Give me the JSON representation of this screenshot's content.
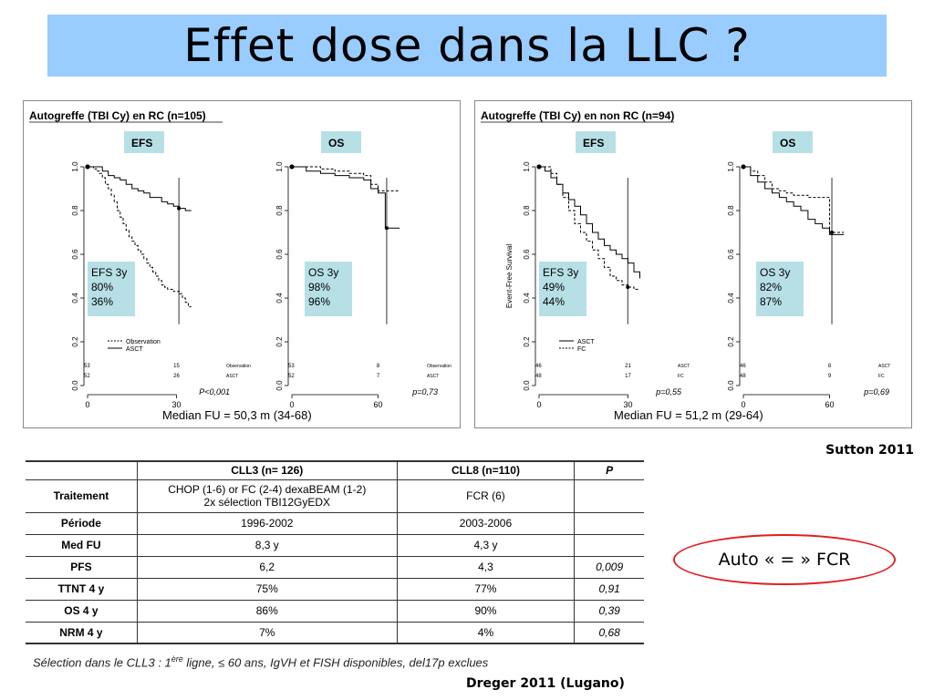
{
  "title": "Effet dose dans la LLC ?",
  "citation_top": "Sutton 2011",
  "callout": "Auto « = »  FCR",
  "footnote": {
    "before": "Sélection dans le CLL3 : 1",
    "sup": "ère",
    "after": " ligne, ≤ 60 ans, IgVH et FISH disponibles, del17p exclues"
  },
  "citation_bottom": "Dreger 2011 (Lugano)",
  "table": {
    "headers": [
      "",
      "CLL3 (n= 126)",
      "CLL8  (n=110)",
      "P"
    ],
    "rows": [
      {
        "label": "Traitement",
        "c1": "CHOP (1-6) or FC (2-4) dexaBEAM (1-2)",
        "c1b": "2x sélection  TBI12GyEDX",
        "c2": "FCR (6)",
        "p": ""
      },
      {
        "label": "Période",
        "c1": "1996-2002",
        "c1b": "",
        "c2": "2003-2006",
        "p": ""
      },
      {
        "label": "Med FU",
        "c1": "8,3 y",
        "c1b": "",
        "c2": "4,3 y",
        "p": ""
      },
      {
        "label": "PFS",
        "c1": "6,2",
        "c1b": "",
        "c2": "4,3",
        "p": "0,009"
      },
      {
        "label": "TTNT 4 y",
        "c1": "75%",
        "c1b": "",
        "c2": "77%",
        "p": "0,91"
      },
      {
        "label": "OS 4 y",
        "c1": "86%",
        "c1b": "",
        "c2": "90%",
        "p": "0,39"
      },
      {
        "label": "NRM 4 y",
        "c1": "7%",
        "c1b": "",
        "c2": "4%",
        "p": "0,68"
      }
    ]
  },
  "chart_data": [
    {
      "type": "line",
      "panel_title": "Autogreffe (TBI Cy) en RC (n=105)",
      "median_fu": "Median FU = 50,3 m (34-68)",
      "plots": [
        {
          "label": "EFS",
          "xlim": [
            0,
            40
          ],
          "ylim": [
            0,
            1
          ],
          "yticks": [
            "0.0",
            "0.2",
            "0.4",
            "0.6",
            "0.8",
            "1.0"
          ],
          "xticks": [
            "0",
            "30"
          ],
          "legend": [
            "Observation",
            "ASCT"
          ],
          "stats_box": [
            "EFS 3y",
            "80%",
            "36%"
          ],
          "risk_table": {
            "headers": [
              "Observation",
              "ASCT"
            ],
            "observation": [
              "53",
              "15"
            ],
            "asct": [
              "52",
              "26"
            ]
          },
          "pvalue": "P<0,001",
          "series": [
            {
              "name": "Observation",
              "dash": true,
              "x": [
                0,
                1,
                2,
                3,
                4,
                5,
                6,
                7,
                8,
                9,
                10,
                11,
                12,
                13,
                14,
                15,
                16,
                17,
                18,
                19,
                20,
                21,
                22,
                23,
                24,
                25,
                26,
                27,
                28,
                29,
                30,
                31,
                32,
                33,
                34,
                35
              ],
              "y": [
                1.0,
                1.0,
                0.99,
                0.98,
                0.97,
                0.95,
                0.92,
                0.9,
                0.87,
                0.84,
                0.8,
                0.77,
                0.74,
                0.71,
                0.68,
                0.66,
                0.64,
                0.62,
                0.6,
                0.58,
                0.56,
                0.54,
                0.52,
                0.5,
                0.48,
                0.46,
                0.45,
                0.44,
                0.44,
                0.43,
                0.43,
                0.42,
                0.4,
                0.38,
                0.36,
                0.36
              ]
            },
            {
              "name": "ASCT",
              "dash": false,
              "x": [
                0,
                3,
                5,
                7,
                9,
                11,
                13,
                15,
                17,
                19,
                21,
                23,
                25,
                27,
                29,
                31,
                33,
                35
              ],
              "y": [
                1.0,
                1.0,
                0.98,
                0.96,
                0.95,
                0.94,
                0.92,
                0.9,
                0.89,
                0.88,
                0.86,
                0.86,
                0.84,
                0.83,
                0.82,
                0.81,
                0.8,
                0.8
              ]
            }
          ]
        },
        {
          "label": "OS",
          "xlim": [
            0,
            80
          ],
          "ylim": [
            0,
            1
          ],
          "yticks": [
            "0.0",
            "0.2",
            "0.4",
            "0.6",
            "0.8",
            "1.0"
          ],
          "xticks": [
            "0",
            "60"
          ],
          "stats_box": [
            "OS 3y",
            "98%",
            "96%"
          ],
          "risk_table": {
            "headers": [
              "Observation",
              "ASCT"
            ],
            "observation": [
              "53",
              "8"
            ],
            "asct": [
              "52",
              "7"
            ]
          },
          "pvalue": "p=0,73",
          "series": [
            {
              "name": "Observation",
              "dash": true,
              "x": [
                0,
                10,
                20,
                30,
                40,
                50,
                55,
                60,
                65,
                70,
                75
              ],
              "y": [
                1.0,
                1.0,
                0.99,
                0.98,
                0.97,
                0.96,
                0.92,
                0.89,
                0.89,
                0.89,
                0.89
              ]
            },
            {
              "name": "ASCT",
              "dash": false,
              "x": [
                0,
                10,
                20,
                30,
                40,
                50,
                55,
                60,
                65,
                70,
                75
              ],
              "y": [
                1.0,
                0.98,
                0.97,
                0.96,
                0.95,
                0.94,
                0.9,
                0.88,
                0.72,
                0.72,
                0.72
              ]
            }
          ]
        }
      ]
    },
    {
      "type": "line",
      "panel_title": "Autogreffe (TBI Cy) en non RC (n=94)",
      "median_fu": "Median FU = 51,2 m (29-64)",
      "plots": [
        {
          "label": "EFS",
          "ylabel": "Event-Free Survival",
          "xlim": [
            0,
            40
          ],
          "ylim": [
            0,
            1
          ],
          "yticks": [
            "0.0",
            "0.2",
            "0.4",
            "0.6",
            "0.8",
            "1.0"
          ],
          "xticks": [
            "0",
            "30"
          ],
          "legend": [
            "ASCT",
            "FC"
          ],
          "stats_box": [
            "EFS 3y",
            "49%",
            "44%"
          ],
          "risk_table": {
            "headers": [
              "ASCT",
              "FC"
            ],
            "asct": [
              "46",
              "21"
            ],
            "fc": [
              "48",
              "17"
            ]
          },
          "pvalue": "p=0,55",
          "series": [
            {
              "name": "ASCT",
              "dash": false,
              "x": [
                0,
                2,
                4,
                6,
                8,
                10,
                12,
                14,
                16,
                18,
                20,
                22,
                24,
                26,
                28,
                30,
                32,
                34
              ],
              "y": [
                1.0,
                0.98,
                0.95,
                0.92,
                0.88,
                0.85,
                0.82,
                0.78,
                0.74,
                0.7,
                0.67,
                0.64,
                0.62,
                0.6,
                0.58,
                0.56,
                0.52,
                0.49
              ]
            },
            {
              "name": "FC",
              "dash": true,
              "x": [
                0,
                2,
                4,
                6,
                8,
                10,
                12,
                14,
                16,
                18,
                20,
                22,
                24,
                26,
                28,
                30,
                32,
                34
              ],
              "y": [
                1.0,
                1.0,
                0.97,
                0.92,
                0.86,
                0.8,
                0.74,
                0.7,
                0.66,
                0.62,
                0.58,
                0.54,
                0.5,
                0.48,
                0.46,
                0.45,
                0.44,
                0.44
              ]
            }
          ]
        },
        {
          "label": "OS",
          "xlim": [
            0,
            80
          ],
          "ylim": [
            0,
            1
          ],
          "yticks": [
            "0.0",
            "0.2",
            "0.4",
            "0.6",
            "0.8",
            "1.0"
          ],
          "xticks": [
            "0",
            "60"
          ],
          "stats_box": [
            "OS 3y",
            "82%",
            "87%"
          ],
          "risk_table": {
            "headers": [
              "ASCT",
              "FC"
            ],
            "asct": [
              "46",
              "8"
            ],
            "fc": [
              "48",
              "9"
            ]
          },
          "pvalue": "p=0,69",
          "series": [
            {
              "name": "ASCT",
              "dash": false,
              "x": [
                0,
                5,
                10,
                15,
                20,
                25,
                30,
                35,
                40,
                45,
                50,
                55,
                60,
                65,
                70
              ],
              "y": [
                1.0,
                0.96,
                0.93,
                0.9,
                0.88,
                0.86,
                0.84,
                0.82,
                0.8,
                0.76,
                0.74,
                0.72,
                0.69,
                0.69,
                0.69
              ]
            },
            {
              "name": "FC",
              "dash": true,
              "x": [
                0,
                5,
                10,
                15,
                20,
                25,
                30,
                35,
                40,
                45,
                50,
                55,
                60,
                65,
                70
              ],
              "y": [
                1.0,
                0.98,
                0.96,
                0.93,
                0.9,
                0.89,
                0.88,
                0.87,
                0.87,
                0.86,
                0.86,
                0.86,
                0.7,
                0.7,
                0.7
              ]
            }
          ]
        }
      ]
    }
  ]
}
